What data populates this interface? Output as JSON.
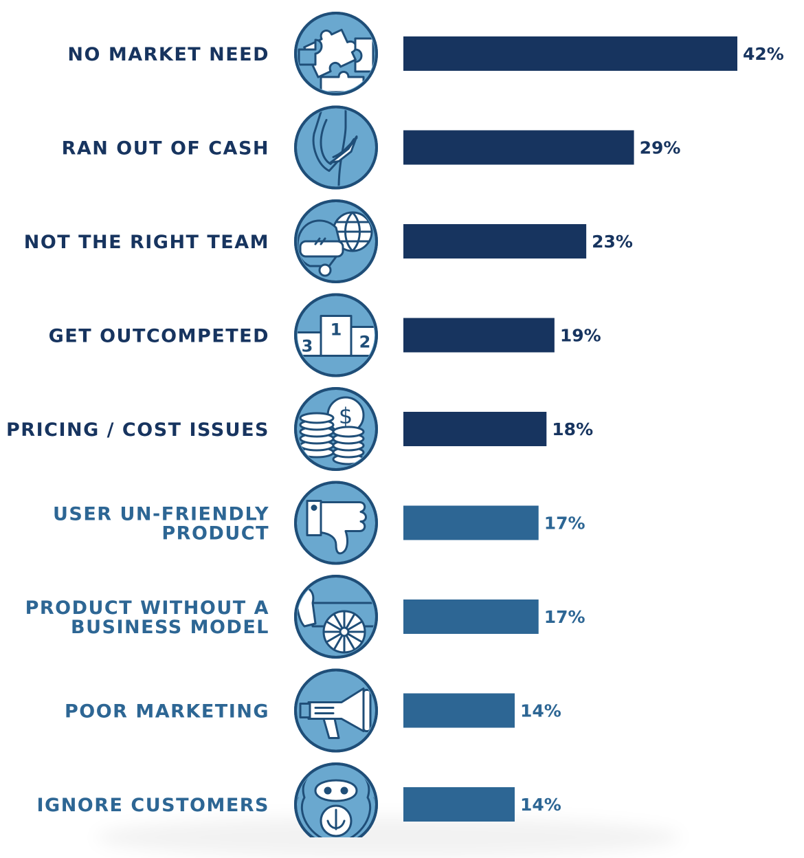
{
  "colors": {
    "primary_dark": "#17345f",
    "secondary": "#2d6694",
    "icon_light": "#6aa8cf",
    "icon_outline": "#1f4e78",
    "icon_white": "#ffffff"
  },
  "chart_data": {
    "type": "bar",
    "orientation": "horizontal",
    "title": "",
    "xlabel": "",
    "ylabel": "",
    "xlim": [
      0,
      42
    ],
    "grid": false,
    "categories": [
      "NO MARKET NEED",
      "RAN OUT OF CASH",
      "NOT THE RIGHT TEAM",
      "GET OUTCOMPETED",
      "PRICING / COST ISSUES",
      "USER UN-FRIENDLY PRODUCT",
      "PRODUCT WITHOUT A BUSINESS MODEL",
      "POOR MARKETING",
      "IGNORE CUSTOMERS"
    ],
    "label_lines": [
      [
        "NO MARKET NEED"
      ],
      [
        "RAN OUT OF CASH"
      ],
      [
        "NOT THE RIGHT TEAM"
      ],
      [
        "GET OUTCOMPETED"
      ],
      [
        "PRICING / COST ISSUES"
      ],
      [
        "USER UN-FRIENDLY",
        "PRODUCT"
      ],
      [
        "PRODUCT WITHOUT A",
        "BUSINESS MODEL"
      ],
      [
        "POOR MARKETING"
      ],
      [
        "IGNORE CUSTOMERS"
      ]
    ],
    "values": [
      42,
      29,
      23,
      19,
      18,
      17,
      17,
      14,
      14
    ],
    "value_labels": [
      "42%",
      "29%",
      "23%",
      "19%",
      "18%",
      "17%",
      "17%",
      "14%",
      "14%"
    ],
    "bar_colors": [
      "#17345f",
      "#17345f",
      "#17345f",
      "#17345f",
      "#17345f",
      "#2d6694",
      "#2d6694",
      "#2d6694",
      "#2d6694"
    ],
    "icons": [
      "puzzle-icon",
      "empty-pockets-icon",
      "vr-headset-globe-icon",
      "podium-icon",
      "coins-dollar-icon",
      "thumbs-down-icon",
      "cart-wheel-icon",
      "megaphone-icon",
      "monkey-icon"
    ]
  }
}
